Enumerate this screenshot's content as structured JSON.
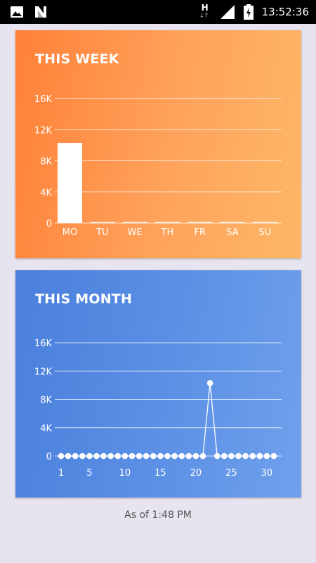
{
  "status_bar": {
    "time": "13:52:36",
    "network_letter": "H",
    "network_arrows": "↓↑",
    "icons": [
      "image-icon",
      "n-logo-icon",
      "h-network-icon",
      "signal-icon",
      "battery-icon"
    ]
  },
  "week_card": {
    "title": "THIS WEEK",
    "chart_data": {
      "type": "bar",
      "categories": [
        "MO",
        "TU",
        "WE",
        "TH",
        "FR",
        "SA",
        "SU"
      ],
      "values": [
        10300,
        0,
        0,
        0,
        0,
        0,
        0
      ],
      "ylim": [
        0,
        16000
      ],
      "yticks": [
        0,
        4000,
        8000,
        12000,
        16000
      ],
      "ytick_labels": [
        "0",
        "4K",
        "8K",
        "12K",
        "16K"
      ],
      "grid": true,
      "color": "#ffffff"
    }
  },
  "month_card": {
    "title": "THIS MONTH",
    "chart_data": {
      "type": "line",
      "x": [
        1,
        2,
        3,
        4,
        5,
        6,
        7,
        8,
        9,
        10,
        11,
        12,
        13,
        14,
        15,
        16,
        17,
        18,
        19,
        20,
        21,
        22,
        23,
        24,
        25,
        26,
        27,
        28,
        29,
        30,
        31
      ],
      "values": [
        0,
        0,
        0,
        0,
        0,
        0,
        0,
        0,
        0,
        0,
        0,
        0,
        0,
        0,
        0,
        0,
        0,
        0,
        0,
        0,
        0,
        10300,
        0,
        0,
        0,
        0,
        0,
        0,
        0,
        0,
        0
      ],
      "xticks": [
        1,
        5,
        10,
        15,
        20,
        25,
        30
      ],
      "ylim": [
        0,
        16000
      ],
      "yticks": [
        0,
        4000,
        8000,
        12000,
        16000
      ],
      "ytick_labels": [
        "0",
        "4K",
        "8K",
        "12K",
        "16K"
      ],
      "grid": true,
      "color": "#ffffff"
    }
  },
  "footer": {
    "text": "As of 1:48 PM"
  }
}
